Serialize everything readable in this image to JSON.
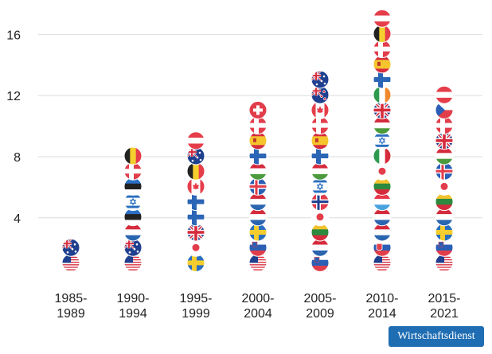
{
  "chart_data": {
    "type": "bar",
    "title": "",
    "xlabel": "",
    "ylabel": "",
    "ylim": [
      0,
      17
    ],
    "yticks": [
      4,
      8,
      12,
      16
    ],
    "grid": true,
    "categories": [
      [
        "1985-",
        "1989"
      ],
      [
        "1990-",
        "1994"
      ],
      [
        "1995-",
        "1999"
      ],
      [
        "2000-",
        "2004"
      ],
      [
        "2005-",
        "2009"
      ],
      [
        "2010-",
        "2014"
      ],
      [
        "2015-",
        "2021"
      ]
    ],
    "values": [
      2,
      8,
      9,
      11,
      13,
      17,
      12
    ],
    "flags": [
      [
        "usa",
        "australia"
      ],
      [
        "usa",
        "australia",
        "netherlands",
        "estonia",
        "israel",
        "estonia",
        "denmark",
        "belgium"
      ],
      [
        "sweden",
        "japan",
        "uk",
        "finland",
        "finland",
        "canada",
        "belgium",
        "australia",
        "austria"
      ],
      [
        "usa",
        "slovenia",
        "sweden",
        "netherlands",
        "netherlands",
        "iceland",
        "hungary",
        "finland",
        "spain",
        "denmark",
        "switzerland"
      ],
      [
        "slovenia",
        "netherlands",
        "lithuania",
        "japan",
        "norway",
        "israel",
        "hungary",
        "finland",
        "spain",
        "denmark",
        "canada",
        "newzealand",
        "australia"
      ],
      [
        "usa",
        "slovakia",
        "netherlands",
        "netherlands",
        "luxembourg",
        "lithuania",
        "japan",
        "italy",
        "israel",
        "hungary",
        "uk",
        "ireland",
        "finland",
        "spain",
        "denmark",
        "belgium",
        "austria"
      ],
      [
        "usa",
        "slovenia",
        "sweden",
        "netherlands",
        "lithuania",
        "japan",
        "iceland",
        "hungary",
        "uk",
        "denmark",
        "czech",
        "austria"
      ]
    ]
  },
  "brand": {
    "label": "Wirtschaftsdienst"
  }
}
